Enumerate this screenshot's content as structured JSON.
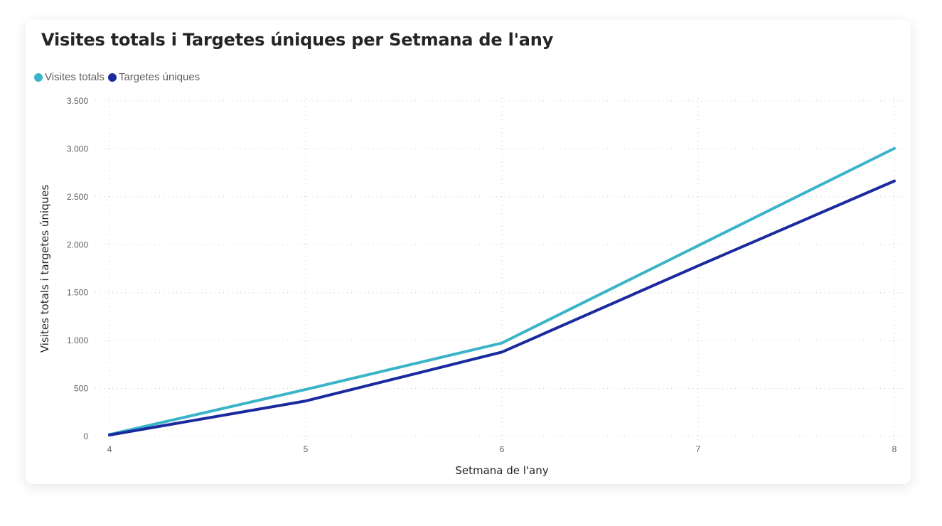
{
  "title": "Visites totals i Targetes úniques per Setmana de l'any",
  "legend": [
    {
      "label": "Visites totals",
      "color": "#3BB4C8"
    },
    {
      "label": "Targetes úniques",
      "color": "#1A2A9E"
    }
  ],
  "axes": {
    "x_title": "Setmana de l'any",
    "y_title": "Visites totals i targetes úniques",
    "x_ticks": [
      "4",
      "5",
      "6",
      "7",
      "8"
    ],
    "y_ticks": [
      "0",
      "500",
      "1.000",
      "1.500",
      "2.000",
      "2.500",
      "3.000",
      "3.500"
    ]
  },
  "chart_data": {
    "type": "line",
    "title": "Visites totals i Targetes úniques per Setmana de l'any",
    "xlabel": "Setmana de l'any",
    "ylabel": "Visites totals i targetes úniques",
    "x": [
      4,
      5,
      6,
      7,
      8
    ],
    "series": [
      {
        "name": "Visites totals",
        "color": "#3BB4C8",
        "values": [
          20,
          490,
          975,
          1990,
          3005
        ]
      },
      {
        "name": "Targetes úniques",
        "color": "#1A2A9E",
        "values": [
          15,
          370,
          880,
          1780,
          2665
        ]
      }
    ],
    "ylim": [
      0,
      3500
    ],
    "y_ticks": [
      0,
      500,
      1000,
      1500,
      2000,
      2500,
      3000,
      3500
    ],
    "grid": true,
    "legend_position": "top-left"
  }
}
